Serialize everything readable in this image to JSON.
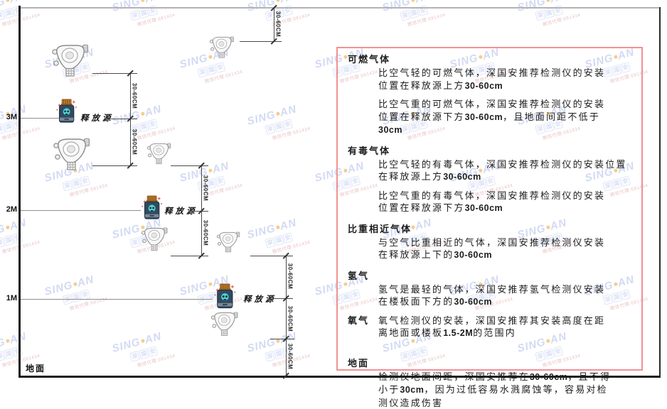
{
  "diagram": {
    "height_labels": {
      "m3": "3M",
      "m2": "2M",
      "m1": "1M"
    },
    "ground_label": "地面",
    "release_source_label": "释放源",
    "dim_label": "30-60CM"
  },
  "watermark": {
    "brand_left": "SING",
    "brand_right": "AN",
    "sub": "深国安",
    "agent": "微信代理:681434"
  },
  "panel": {
    "sections": [
      {
        "heading": "可燃气体",
        "paras": [
          {
            "lines": [
              [
                {
                  "t": "比空气轻的可燃气体，深国安推荐检测仪的安装"
                }
              ],
              [
                {
                  "t": "位置在释放源上方"
                },
                {
                  "t": "30-60cm",
                  "b": true
                }
              ]
            ]
          },
          {
            "lines": [
              [
                {
                  "t": "比空气重的可燃气体，深国安推荐检测仪的安装"
                }
              ],
              [
                {
                  "t": "位置在释放源下方"
                },
                {
                  "t": "30-60cm",
                  "b": true
                },
                {
                  "t": "，且地面间距不低于"
                }
              ],
              [
                {
                  "t": "30cm",
                  "b": true
                }
              ]
            ]
          }
        ]
      },
      {
        "heading": "有毒气体",
        "paras": [
          {
            "lines": [
              [
                {
                  "t": "比空气轻的有毒气体，深国安推荐检测仪的安装位置"
                }
              ],
              [
                {
                  "t": "在释放源上方"
                },
                {
                  "t": "30-60cm",
                  "b": true
                }
              ]
            ]
          },
          {
            "lines": [
              [
                {
                  "t": "比空气重的有毒气体，深国安推荐检测仪的安装"
                }
              ],
              [
                {
                  "t": "位置在释放源下方"
                },
                {
                  "t": "30-60cm",
                  "b": true
                }
              ]
            ]
          }
        ]
      },
      {
        "heading": "比重相近气体",
        "paras": [
          {
            "lines": [
              [
                {
                  "t": "与空气比重相近的气体，深国安推荐检测仪安装"
                }
              ],
              [
                {
                  "t": "在释放源上下的"
                },
                {
                  "t": "30-60cm",
                  "b": true
                }
              ]
            ]
          }
        ]
      },
      {
        "heading": "氢气",
        "paras": [
          {
            "lines": [
              [
                {
                  "t": "氢气是最轻的气体，深国安推荐氢气检测仪安装"
                }
              ],
              [
                {
                  "t": "在楼板面下方的"
                },
                {
                  "t": "30-60cm",
                  "b": true
                }
              ]
            ]
          }
        ]
      },
      {
        "heading": "氧气",
        "inline": true,
        "paras": [
          {
            "lines": [
              [
                {
                  "t": "氧气检测仪的安装，深国安推荐其安装高度在距"
                }
              ],
              [
                {
                  "t": "离地面或楼板"
                },
                {
                  "t": "1.5-2M",
                  "b": true
                },
                {
                  "t": "的范围内"
                }
              ]
            ]
          }
        ]
      },
      {
        "heading": "地面",
        "paras": [
          {
            "lines": [
              [
                {
                  "t": "检测仪地面间距，深国安推荐在"
                },
                {
                  "t": "30-60cm",
                  "b": true
                },
                {
                  "t": "，且不得"
                }
              ],
              [
                {
                  "t": "小于"
                },
                {
                  "t": "30cm",
                  "b": true
                },
                {
                  "t": "，因为过低容易水溅腐蚀等，容易对检"
                }
              ],
              [
                {
                  "t": "测仪造成伤害"
                }
              ]
            ]
          }
        ]
      }
    ]
  }
}
